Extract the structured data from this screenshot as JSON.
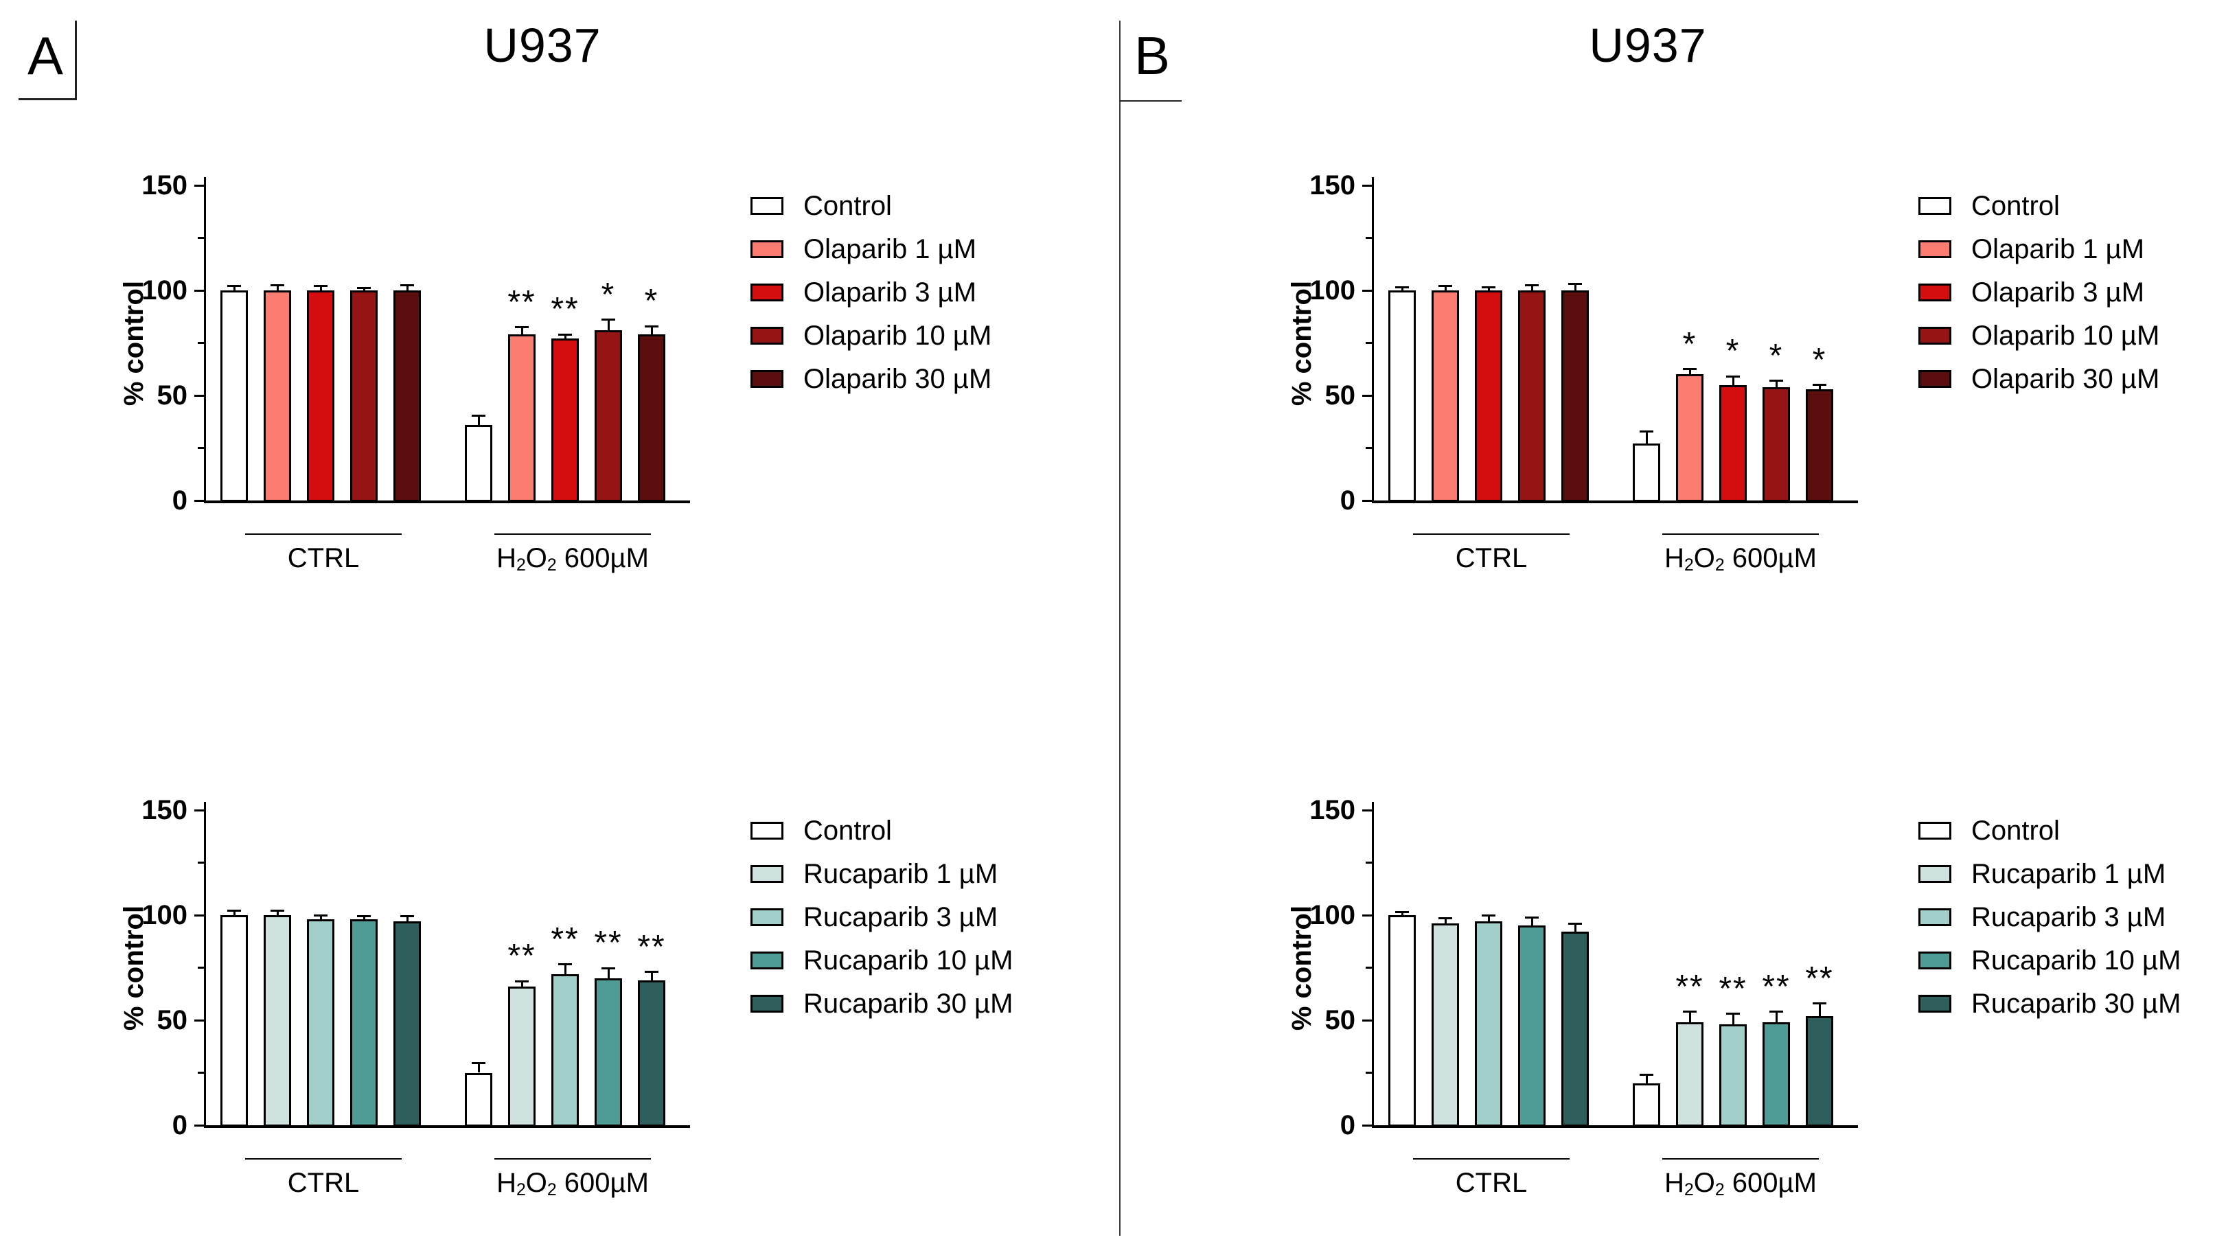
{
  "panels": [
    {
      "letter": "A",
      "title": "U937"
    },
    {
      "letter": "B",
      "title": "U937"
    }
  ],
  "axis": {
    "ylabel": "% control",
    "yticks": [
      0,
      50,
      100,
      150
    ],
    "yticks_minor": [
      25,
      75,
      125
    ],
    "ylim": [
      0,
      150
    ]
  },
  "colors": {
    "olaparib": [
      "#FFFFFF",
      "#FB7D71",
      "#D40E0E",
      "#951414",
      "#5A0E0E"
    ],
    "rucaparib": [
      "#FFFFFF",
      "#D0E2DF",
      "#A3CFCB",
      "#4F9B96",
      "#2F5F5C"
    ]
  },
  "chart_data": [
    {
      "id": "A-top",
      "panel": "A",
      "type": "bar",
      "title": "U937",
      "ylabel": "% control",
      "ylim": [
        0,
        150
      ],
      "yticks": [
        0,
        50,
        100,
        150
      ],
      "yticks_minor": [
        25,
        75,
        125
      ],
      "categories": [
        "CTRL",
        "H2O2 600µM"
      ],
      "category_label_rich": [
        [
          [
            "CTRL",
            false
          ]
        ],
        [
          [
            "H",
            false
          ],
          [
            "2",
            true
          ],
          [
            "O",
            false
          ],
          [
            "2",
            true
          ],
          [
            " 600µM",
            false
          ]
        ]
      ],
      "series": [
        {
          "name": "Control",
          "color": "#FFFFFF",
          "values": [
            100,
            36
          ],
          "errors": [
            2,
            4.5
          ],
          "sig": [
            "",
            ""
          ]
        },
        {
          "name": "Olaparib 1 µM",
          "color": "#FB7D71",
          "values": [
            100,
            79
          ],
          "errors": [
            2.5,
            3.5
          ],
          "sig": [
            "",
            "**"
          ]
        },
        {
          "name": "Olaparib 3 µM",
          "color": "#D40E0E",
          "values": [
            100,
            77
          ],
          "errors": [
            2,
            2
          ],
          "sig": [
            "",
            "**"
          ]
        },
        {
          "name": "Olaparib 10 µM",
          "color": "#951414",
          "values": [
            100,
            81
          ],
          "errors": [
            1,
            5
          ],
          "sig": [
            "",
            "*"
          ]
        },
        {
          "name": "Olaparib 30 µM",
          "color": "#5A0E0E",
          "values": [
            100,
            79
          ],
          "errors": [
            2.5,
            4
          ],
          "sig": [
            "",
            "*"
          ]
        }
      ]
    },
    {
      "id": "A-bottom",
      "panel": "A",
      "type": "bar",
      "title": "U937",
      "ylabel": "% control",
      "ylim": [
        0,
        150
      ],
      "yticks": [
        0,
        50,
        100,
        150
      ],
      "yticks_minor": [
        25,
        75,
        125
      ],
      "categories": [
        "CTRL",
        "H2O2 600µM"
      ],
      "category_label_rich": [
        [
          [
            "CTRL",
            false
          ]
        ],
        [
          [
            "H",
            false
          ],
          [
            "2",
            true
          ],
          [
            "O",
            false
          ],
          [
            "2",
            true
          ],
          [
            " 600µM",
            false
          ]
        ]
      ],
      "series": [
        {
          "name": "Control",
          "color": "#FFFFFF",
          "values": [
            100,
            25
          ],
          "errors": [
            2,
            4.5
          ],
          "sig": [
            "",
            ""
          ]
        },
        {
          "name": "Rucaparib 1 µM",
          "color": "#D0E2DF",
          "values": [
            100,
            66
          ],
          "errors": [
            2,
            2.6
          ],
          "sig": [
            "",
            "**"
          ]
        },
        {
          "name": "Rucaparib 3 µM",
          "color": "#A3CFCB",
          "values": [
            98,
            72
          ],
          "errors": [
            2,
            4.5
          ],
          "sig": [
            "",
            "**"
          ]
        },
        {
          "name": "Rucaparib 10 µM",
          "color": "#4F9B96",
          "values": [
            98,
            70
          ],
          "errors": [
            1.5,
            4.7
          ],
          "sig": [
            "",
            "**"
          ]
        },
        {
          "name": "Rucaparib 30 µM",
          "color": "#2F5F5C",
          "values": [
            97,
            69
          ],
          "errors": [
            2.5,
            4
          ],
          "sig": [
            "",
            "**"
          ]
        }
      ]
    },
    {
      "id": "B-top",
      "panel": "B",
      "type": "bar",
      "title": "U937",
      "ylabel": "% control",
      "ylim": [
        0,
        150
      ],
      "yticks": [
        0,
        50,
        100,
        150
      ],
      "yticks_minor": [
        25,
        75,
        125
      ],
      "categories": [
        "CTRL",
        "H2O2 600µM"
      ],
      "category_label_rich": [
        [
          [
            "CTRL",
            false
          ]
        ],
        [
          [
            "H",
            false
          ],
          [
            "2",
            true
          ],
          [
            "O",
            false
          ],
          [
            "2",
            true
          ],
          [
            " 600µM",
            false
          ]
        ]
      ],
      "series": [
        {
          "name": "Control",
          "color": "#FFFFFF",
          "values": [
            100,
            27
          ],
          "errors": [
            1.5,
            6
          ],
          "sig": [
            "",
            ""
          ]
        },
        {
          "name": "Olaparib 1 µM",
          "color": "#FB7D71",
          "values": [
            100,
            60
          ],
          "errors": [
            2,
            2.5
          ],
          "sig": [
            "",
            "*"
          ]
        },
        {
          "name": "Olaparib 3 µM",
          "color": "#D40E0E",
          "values": [
            100,
            55
          ],
          "errors": [
            1.5,
            4
          ],
          "sig": [
            "",
            "*"
          ]
        },
        {
          "name": "Olaparib 10 µM",
          "color": "#951414",
          "values": [
            100,
            54
          ],
          "errors": [
            2.5,
            3
          ],
          "sig": [
            "",
            "*"
          ]
        },
        {
          "name": "Olaparib 30 µM",
          "color": "#5A0E0E",
          "values": [
            100,
            53
          ],
          "errors": [
            3,
            2
          ],
          "sig": [
            "",
            "*"
          ]
        }
      ]
    },
    {
      "id": "B-bottom",
      "panel": "B",
      "type": "bar",
      "title": "U937",
      "ylabel": "% control",
      "ylim": [
        0,
        150
      ],
      "yticks": [
        0,
        50,
        100,
        150
      ],
      "yticks_minor": [
        25,
        75,
        125
      ],
      "categories": [
        "CTRL",
        "H2O2 600µM"
      ],
      "category_label_rich": [
        [
          [
            "CTRL",
            false
          ]
        ],
        [
          [
            "H",
            false
          ],
          [
            "2",
            true
          ],
          [
            "O",
            false
          ],
          [
            "2",
            true
          ],
          [
            " 600µM",
            false
          ]
        ]
      ],
      "series": [
        {
          "name": "Control",
          "color": "#FFFFFF",
          "values": [
            100,
            20
          ],
          "errors": [
            1.5,
            4
          ],
          "sig": [
            "",
            ""
          ]
        },
        {
          "name": "Rucaparib 1 µM",
          "color": "#D0E2DF",
          "values": [
            96,
            49
          ],
          "errors": [
            2.5,
            5
          ],
          "sig": [
            "",
            "**"
          ]
        },
        {
          "name": "Rucaparib 3 µM",
          "color": "#A3CFCB",
          "values": [
            97,
            48
          ],
          "errors": [
            3,
            5
          ],
          "sig": [
            "",
            "**"
          ]
        },
        {
          "name": "Rucaparib 10 µM",
          "color": "#4F9B96",
          "values": [
            95,
            49
          ],
          "errors": [
            4,
            5
          ],
          "sig": [
            "",
            "**"
          ]
        },
        {
          "name": "Rucaparib 30 µM",
          "color": "#2F5F5C",
          "values": [
            92,
            52
          ],
          "errors": [
            4,
            6
          ],
          "sig": [
            "",
            "**"
          ]
        }
      ]
    }
  ]
}
